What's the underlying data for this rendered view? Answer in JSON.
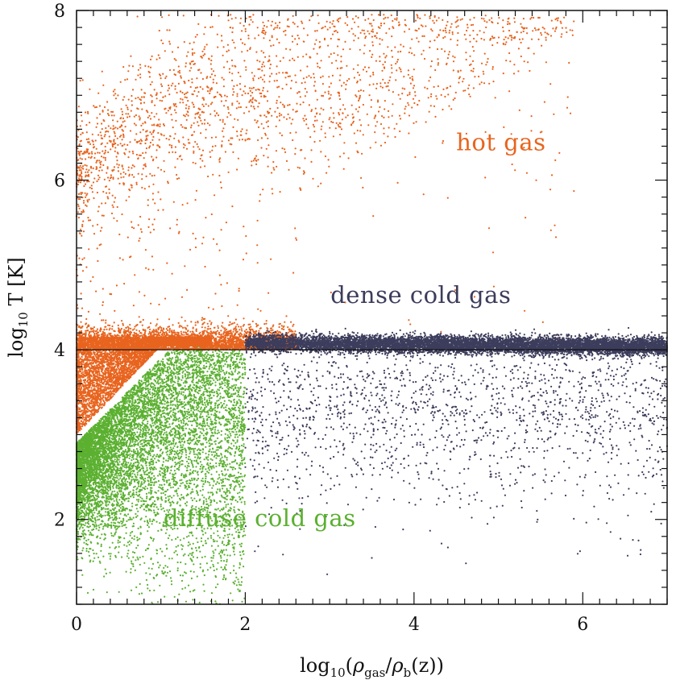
{
  "chart_data": {
    "type": "scatter",
    "title": "",
    "xlabel": "log10(ρgas/ρb(z))",
    "ylabel": "log10 T [K]",
    "xlabel_parts": {
      "pre": "log",
      "pre_sub": "10",
      "open": "(",
      "rho1": "ρ",
      "rho1_sub": "gas",
      "slash": "/",
      "rho2": "ρ",
      "rho2_sub": "b",
      "tail": "(z))"
    },
    "ylabel_parts": {
      "pre": "log",
      "pre_sub": "10",
      "tail": " T [K]"
    },
    "xlim": [
      0,
      7
    ],
    "ylim": [
      1,
      8
    ],
    "x_ticks": [
      0,
      2,
      4,
      6
    ],
    "y_ticks": [
      2,
      4,
      6,
      8
    ],
    "x_tick_labels": [
      "0",
      "2",
      "4",
      "6"
    ],
    "y_tick_labels": [
      "2",
      "4",
      "6",
      "8"
    ],
    "grid": false,
    "reference_line": {
      "y": 4
    },
    "colors": {
      "hot": "#e8641e",
      "dense": "#3c3c5c",
      "diffuse": "#5bb030",
      "axis": "#111111"
    },
    "series": [
      {
        "key": "hot",
        "label": "hot gas",
        "label_at": [
          4.5,
          6.35
        ],
        "envelope_points": [
          [
            0,
            3.0
          ],
          [
            0.2,
            5.8
          ],
          [
            0.5,
            6.5
          ],
          [
            1,
            6.8
          ],
          [
            2,
            7.1
          ],
          [
            3,
            7.3
          ],
          [
            4,
            7.3
          ],
          [
            5,
            7.3
          ],
          [
            5.9,
            7.4
          ]
        ]
      },
      {
        "key": "dense",
        "label": "dense cold gas",
        "label_at": [
          3.01,
          4.55
        ],
        "envelope_points": [
          [
            2,
            4.1
          ],
          [
            3,
            4.1
          ],
          [
            4,
            4.05
          ],
          [
            5,
            4.05
          ],
          [
            6,
            4.03
          ],
          [
            7,
            4.0
          ],
          [
            3,
            3.0
          ],
          [
            5,
            2.5
          ]
        ]
      },
      {
        "key": "diffuse",
        "label": "diffuse cold gas",
        "label_at": [
          1.03,
          1.92
        ],
        "envelope_points": [
          [
            0,
            2.9
          ],
          [
            0.5,
            3.4
          ],
          [
            1,
            3.8
          ],
          [
            1.5,
            4.1
          ],
          [
            0,
            1.0
          ],
          [
            0.5,
            1.5
          ],
          [
            1,
            2.2
          ],
          [
            2,
            4.0
          ]
        ]
      }
    ]
  }
}
